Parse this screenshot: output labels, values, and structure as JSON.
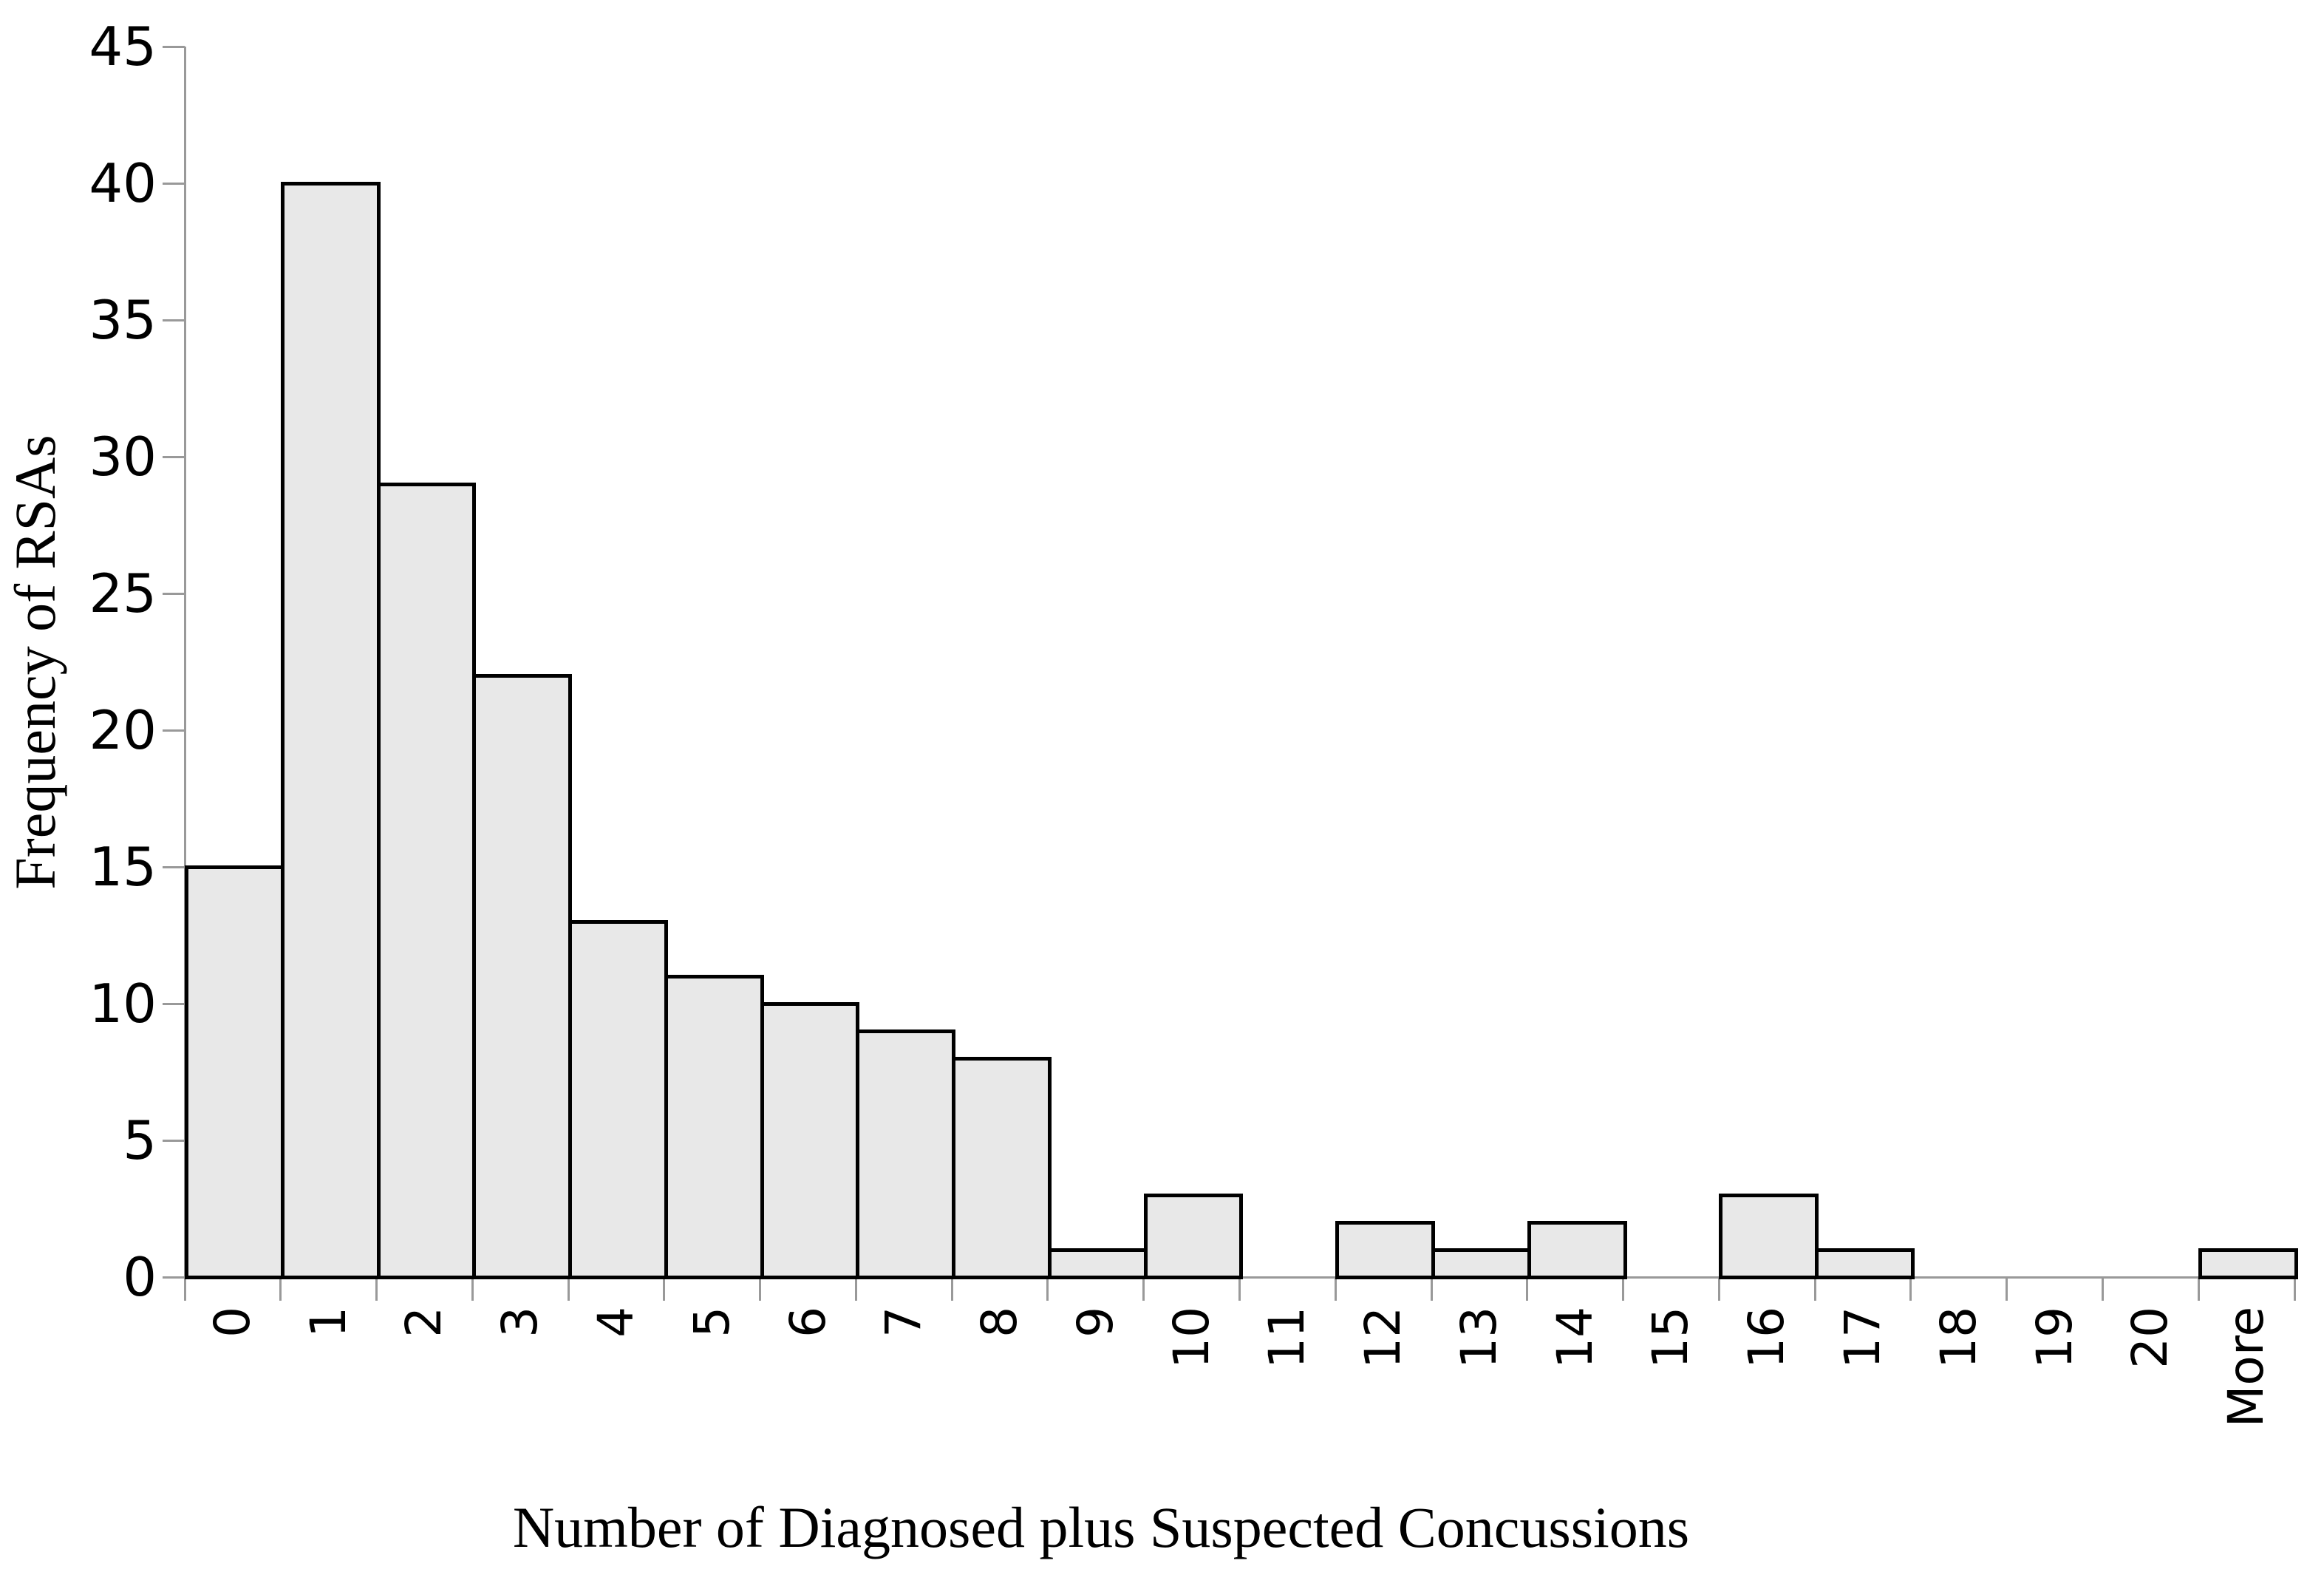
{
  "chart_data": {
    "type": "bar",
    "categories": [
      "0",
      "1",
      "2",
      "3",
      "4",
      "5",
      "6",
      "7",
      "8",
      "9",
      "10",
      "11",
      "12",
      "13",
      "14",
      "15",
      "16",
      "17",
      "18",
      "19",
      "20",
      "More"
    ],
    "values": [
      15,
      40,
      29,
      22,
      13,
      11,
      10,
      9,
      8,
      1,
      3,
      0,
      2,
      1,
      2,
      0,
      3,
      1,
      0,
      0,
      0,
      1
    ],
    "xlabel": "Number of Diagnosed plus Suspected Concussions",
    "ylabel": "Frequency of RSAs",
    "ylim": [
      0,
      45
    ],
    "yticks": [
      0,
      5,
      10,
      15,
      20,
      25,
      30,
      35,
      40,
      45
    ],
    "grid": false,
    "legend_position": "none",
    "bar_gap": 0
  },
  "colors": {
    "bar_fill": "#e8e8e8",
    "bar_border": "#000000",
    "axis": "#999999",
    "text": "#000000",
    "background": "#ffffff"
  }
}
